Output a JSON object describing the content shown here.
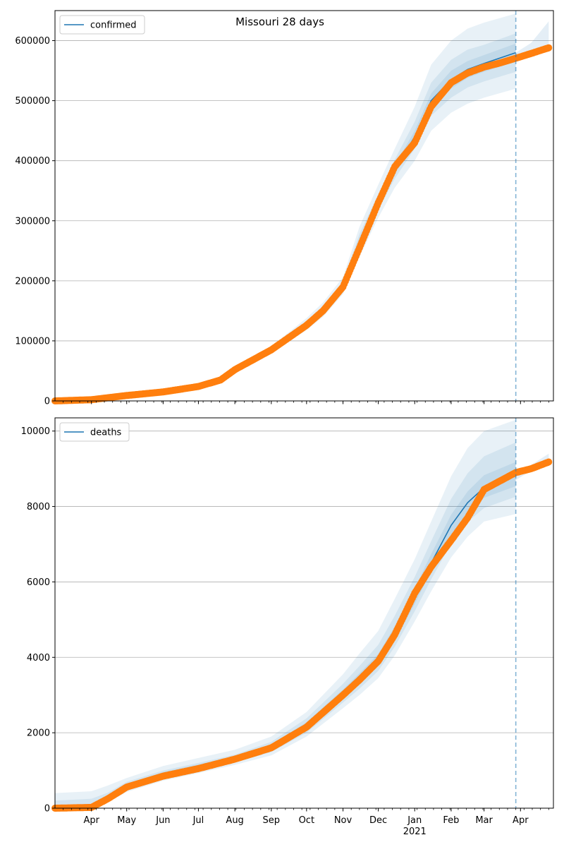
{
  "figure": {
    "title": "Missouri 28 days"
  },
  "chart_data": [
    {
      "type": "line",
      "legend": "confirmed",
      "legend_position": "top-left",
      "grid": "y",
      "ylim": [
        0,
        650000
      ],
      "yticks": [
        0,
        100000,
        200000,
        300000,
        400000,
        500000,
        600000
      ],
      "ytick_labels": [
        "0",
        "100000",
        "200000",
        "300000",
        "400000",
        "500000",
        "600000"
      ],
      "forecast_start": "2021-03-28",
      "model_line": {
        "x": [
          "2020-03-01",
          "2020-04-01",
          "2020-05-01",
          "2020-06-01",
          "2020-07-01",
          "2020-07-20",
          "2020-08-01",
          "2020-09-01",
          "2020-10-01",
          "2020-10-15",
          "2020-11-01",
          "2020-11-15",
          "2020-12-01",
          "2020-12-15",
          "2021-01-01",
          "2021-01-15",
          "2021-02-01",
          "2021-02-15",
          "2021-03-01",
          "2021-03-28"
        ],
        "y": [
          0,
          2000,
          9000,
          15000,
          24000,
          35000,
          52000,
          85000,
          128000,
          152000,
          192000,
          265000,
          330000,
          385000,
          440000,
          500000,
          535000,
          552000,
          562000,
          580000
        ]
      },
      "observed": {
        "x": [
          "2020-03-01",
          "2020-04-01",
          "2020-05-01",
          "2020-06-01",
          "2020-07-01",
          "2020-07-20",
          "2020-08-01",
          "2020-09-01",
          "2020-10-01",
          "2020-10-15",
          "2020-11-01",
          "2020-11-15",
          "2020-12-01",
          "2020-12-15",
          "2021-01-01",
          "2021-01-15",
          "2021-02-01",
          "2021-02-15",
          "2021-03-01",
          "2021-03-15",
          "2021-04-01",
          "2021-04-25"
        ],
        "y": [
          0,
          2000,
          9000,
          15000,
          24000,
          35000,
          52000,
          85000,
          126000,
          150000,
          190000,
          255000,
          330000,
          390000,
          430000,
          490000,
          530000,
          546000,
          556000,
          563000,
          573000,
          588000
        ]
      },
      "bands": [
        {
          "lower": [
            0,
            1500,
            8000,
            13000,
            21500,
            31000,
            48000,
            79000,
            118000,
            140000,
            178000,
            240000,
            305000,
            355000,
            400000,
            450000,
            480000,
            495000,
            505000,
            520000
          ],
          "upper": [
            0,
            2500,
            10000,
            17000,
            26500,
            39000,
            56000,
            91000,
            138000,
            164000,
            206000,
            290000,
            360000,
            420000,
            490000,
            560000,
            600000,
            620000,
            630000,
            645000
          ]
        },
        {
          "lower": [
            0,
            1700,
            8500,
            14000,
            22500,
            33000,
            50000,
            82000,
            123000,
            146000,
            185000,
            252000,
            318000,
            370000,
            420000,
            475000,
            505000,
            522000,
            532000,
            548000
          ],
          "upper": [
            0,
            2300,
            9500,
            16000,
            25500,
            37000,
            54000,
            88000,
            133000,
            158000,
            199000,
            278000,
            344000,
            402000,
            465000,
            530000,
            568000,
            585000,
            593000,
            612000
          ]
        },
        {
          "lower": [
            0,
            1850,
            8750,
            14500,
            23200,
            34000,
            51000,
            83500,
            125500,
            149000,
            188500,
            258000,
            324000,
            378000,
            430000,
            488000,
            520000,
            538000,
            548000,
            565000
          ],
          "upper": [
            0,
            2150,
            9250,
            15500,
            24800,
            36000,
            53000,
            86500,
            130500,
            155000,
            195500,
            272000,
            336000,
            392000,
            450000,
            512000,
            550000,
            566000,
            576000,
            595000
          ]
        }
      ],
      "projection_band": {
        "x": [
          "2021-03-28",
          "2021-04-10",
          "2021-04-25"
        ],
        "lower": [
          566000,
          574000,
          582000
        ],
        "upper": [
          580000,
          596000,
          632000
        ]
      }
    },
    {
      "type": "line",
      "legend": "deaths",
      "legend_position": "top-left",
      "grid": "y",
      "ylim": [
        0,
        10350
      ],
      "yticks": [
        0,
        2000,
        4000,
        6000,
        8000,
        10000
      ],
      "ytick_labels": [
        "0",
        "2000",
        "4000",
        "6000",
        "8000",
        "10000"
      ],
      "xtick_labels": [
        "Apr",
        "May",
        "Jun",
        "Jul",
        "Aug",
        "Sep",
        "Oct",
        "Nov",
        "Dec",
        "Jan",
        "Feb",
        "Mar",
        "Apr"
      ],
      "xtick_dates": [
        "2020-04-01",
        "2020-05-01",
        "2020-06-01",
        "2020-07-01",
        "2020-08-01",
        "2020-09-01",
        "2020-10-01",
        "2020-11-01",
        "2020-12-01",
        "2021-01-01",
        "2021-02-01",
        "2021-03-01",
        "2021-04-01"
      ],
      "year_label": "2021",
      "forecast_start": "2021-03-28",
      "model_line": {
        "x": [
          "2020-03-01",
          "2020-04-01",
          "2020-04-15",
          "2020-05-01",
          "2020-06-01",
          "2020-07-01",
          "2020-08-01",
          "2020-09-01",
          "2020-10-01",
          "2020-11-01",
          "2020-11-15",
          "2020-12-01",
          "2020-12-15",
          "2021-01-01",
          "2021-01-15",
          "2021-02-01",
          "2021-02-15",
          "2021-03-01",
          "2021-03-28"
        ],
        "y": [
          0,
          20,
          250,
          560,
          880,
          1080,
          1300,
          1600,
          2150,
          3000,
          3400,
          3900,
          4600,
          5600,
          6500,
          7500,
          8100,
          8500,
          8850
        ]
      },
      "observed": {
        "x": [
          "2020-03-01",
          "2020-04-01",
          "2020-04-15",
          "2020-05-01",
          "2020-06-01",
          "2020-07-01",
          "2020-08-01",
          "2020-09-01",
          "2020-10-01",
          "2020-11-01",
          "2020-11-15",
          "2020-12-01",
          "2020-12-15",
          "2021-01-01",
          "2021-01-15",
          "2021-02-01",
          "2021-02-15",
          "2021-03-01",
          "2021-03-28",
          "2021-04-10",
          "2021-04-25"
        ],
        "y": [
          0,
          20,
          250,
          560,
          850,
          1050,
          1300,
          1600,
          2150,
          3000,
          3400,
          3900,
          4600,
          5700,
          6400,
          7100,
          7700,
          8450,
          8900,
          9000,
          9180
        ]
      },
      "bands": [
        {
          "lower": [
            0,
            0,
            150,
            430,
            730,
            930,
            1150,
            1400,
            1900,
            2650,
            3000,
            3450,
            4050,
            4950,
            5750,
            6650,
            7200,
            7600,
            7800
          ],
          "upper": [
            400,
            450,
            600,
            800,
            1120,
            1330,
            1550,
            1900,
            2550,
            3550,
            4100,
            4700,
            5550,
            6600,
            7600,
            8800,
            9550,
            10000,
            10300
          ]
        },
        {
          "lower": [
            0,
            0,
            190,
            480,
            790,
            990,
            1210,
            1490,
            2000,
            2800,
            3170,
            3640,
            4280,
            5220,
            6070,
            7020,
            7590,
            7960,
            8260
          ],
          "upper": [
            200,
            250,
            410,
            700,
            1000,
            1200,
            1420,
            1760,
            2380,
            3300,
            3770,
            4330,
            5100,
            6130,
            7080,
            8200,
            8880,
            9330,
            9700
          ]
        },
        {
          "lower": [
            0,
            0,
            220,
            520,
            830,
            1030,
            1250,
            1540,
            2070,
            2900,
            3280,
            3770,
            4440,
            5410,
            6290,
            7260,
            7850,
            8230,
            8540
          ],
          "upper": [
            80,
            100,
            330,
            640,
            960,
            1160,
            1370,
            1690,
            2280,
            3150,
            3580,
            4090,
            4820,
            5820,
            6740,
            7780,
            8400,
            8830,
            9180
          ]
        }
      ],
      "projection_band": {
        "x": [
          "2021-03-28",
          "2021-04-10",
          "2021-04-25"
        ],
        "lower": [
          8700,
          8950,
          9100
        ],
        "upper": [
          8950,
          9100,
          9400
        ]
      }
    }
  ]
}
